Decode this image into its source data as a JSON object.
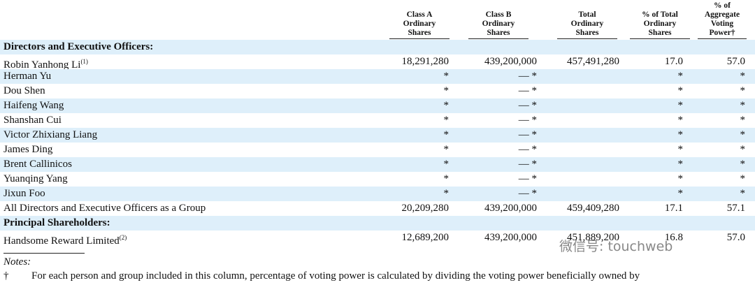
{
  "table": {
    "columns": [
      "Class A\nOrdinary\nShares",
      "Class B\nOrdinary\nShares",
      "Total\nOrdinary\nShares",
      "% of Total\nOrdinary\nShares",
      "% of\nAggregate\nVoting\nPower†"
    ],
    "sections": [
      {
        "title": "Directors and Executive Officers:",
        "rows": [
          {
            "name": "Robin Yanhong Li",
            "note": "(1)",
            "cells": [
              "18,291,280",
              "439,200,000",
              "457,491,280",
              "17.0",
              "57.0"
            ]
          },
          {
            "name": "Herman Yu",
            "cells": [
              "*",
              "— *",
              null,
              "*",
              "*"
            ]
          },
          {
            "name": "Dou Shen",
            "cells": [
              "*",
              "— *",
              null,
              "*",
              "*"
            ]
          },
          {
            "name": "Haifeng Wang",
            "cells": [
              "*",
              "— *",
              null,
              "*",
              "*"
            ]
          },
          {
            "name": "Shanshan Cui",
            "cells": [
              "*",
              "— *",
              null,
              "*",
              "*"
            ]
          },
          {
            "name": "Victor Zhixiang Liang",
            "cells": [
              "*",
              "— *",
              null,
              "*",
              "*"
            ]
          },
          {
            "name": "James Ding",
            "cells": [
              "*",
              "— *",
              null,
              "*",
              "*"
            ]
          },
          {
            "name": "Brent Callinicos",
            "cells": [
              "*",
              "— *",
              null,
              "*",
              "*"
            ]
          },
          {
            "name": "Yuanqing Yang",
            "cells": [
              "*",
              "— *",
              null,
              "*",
              "*"
            ]
          },
          {
            "name": "Jixun Foo",
            "cells": [
              "*",
              "— *",
              null,
              "*",
              "*"
            ]
          },
          {
            "name": "All Directors and Executive Officers as a Group",
            "cells": [
              "20,209,280",
              "439,200,000",
              "459,409,280",
              "17.1",
              "57.1"
            ]
          }
        ]
      },
      {
        "title": "Principal Shareholders:",
        "rows": [
          {
            "name": "Handsome Reward Limited",
            "note": "(2)",
            "cells": [
              "12,689,200",
              "439,200,000",
              "451,889,200",
              "16.8",
              "57.0"
            ]
          }
        ]
      }
    ]
  },
  "watermark": "微信号: touchweb",
  "notes": {
    "title": "Notes:",
    "items": [
      {
        "mark": "†",
        "text": "For each person and group included in this column, percentage of voting power is calculated by dividing the voting power beneficially owned by"
      }
    ]
  }
}
